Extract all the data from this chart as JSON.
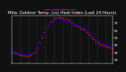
{
  "title": "Milw. Outdoor Temp. (vs) Heat Index (Last 24 Hours)",
  "bg_color": "#111111",
  "plot_bg_color": "#111111",
  "temp_color": "#0000ff",
  "heat_color": "#ff0000",
  "legend_line_color": "#ff0000",
  "legend_dot_color": "#0000ff",
  "ylim": [
    15,
    80
  ],
  "yticks": [
    20,
    30,
    40,
    50,
    60,
    70
  ],
  "ytick_labels": [
    "20",
    "30",
    "40",
    "50",
    "60",
    "70"
  ],
  "n_points": 48,
  "temp_values": [
    32,
    31,
    30,
    29,
    28,
    27,
    27,
    26,
    27,
    28,
    30,
    33,
    38,
    45,
    52,
    58,
    63,
    67,
    70,
    72,
    74,
    75,
    75,
    74,
    73,
    72,
    71,
    70,
    69,
    68,
    67,
    66,
    65,
    64,
    62,
    60,
    57,
    54,
    51,
    48,
    46,
    44,
    42,
    41,
    40,
    39,
    38,
    37
  ],
  "heat_values": [
    30,
    29,
    28,
    27,
    26,
    25,
    25,
    24,
    25,
    26,
    28,
    31,
    36,
    43,
    50,
    57,
    63,
    67,
    71,
    73,
    76,
    77,
    78,
    77,
    76,
    75,
    74,
    72,
    70,
    68,
    66,
    65,
    63,
    62,
    60,
    57,
    54,
    51,
    48,
    45,
    43,
    41,
    40,
    39,
    38,
    37,
    36,
    35
  ],
  "grid_positions": [
    0,
    4,
    8,
    12,
    16,
    20,
    24,
    28,
    32,
    36,
    40,
    44,
    47
  ],
  "grid_color": "#555555",
  "title_fontsize": 3.8,
  "tick_fontsize": 3.0,
  "title_color": "#ffffff",
  "tick_color": "#ffffff",
  "spine_color": "#ffffff",
  "dot_size": 1.0,
  "xtick_positions": [
    0,
    4,
    8,
    12,
    16,
    20,
    24,
    28,
    32,
    36,
    40,
    44,
    47
  ]
}
